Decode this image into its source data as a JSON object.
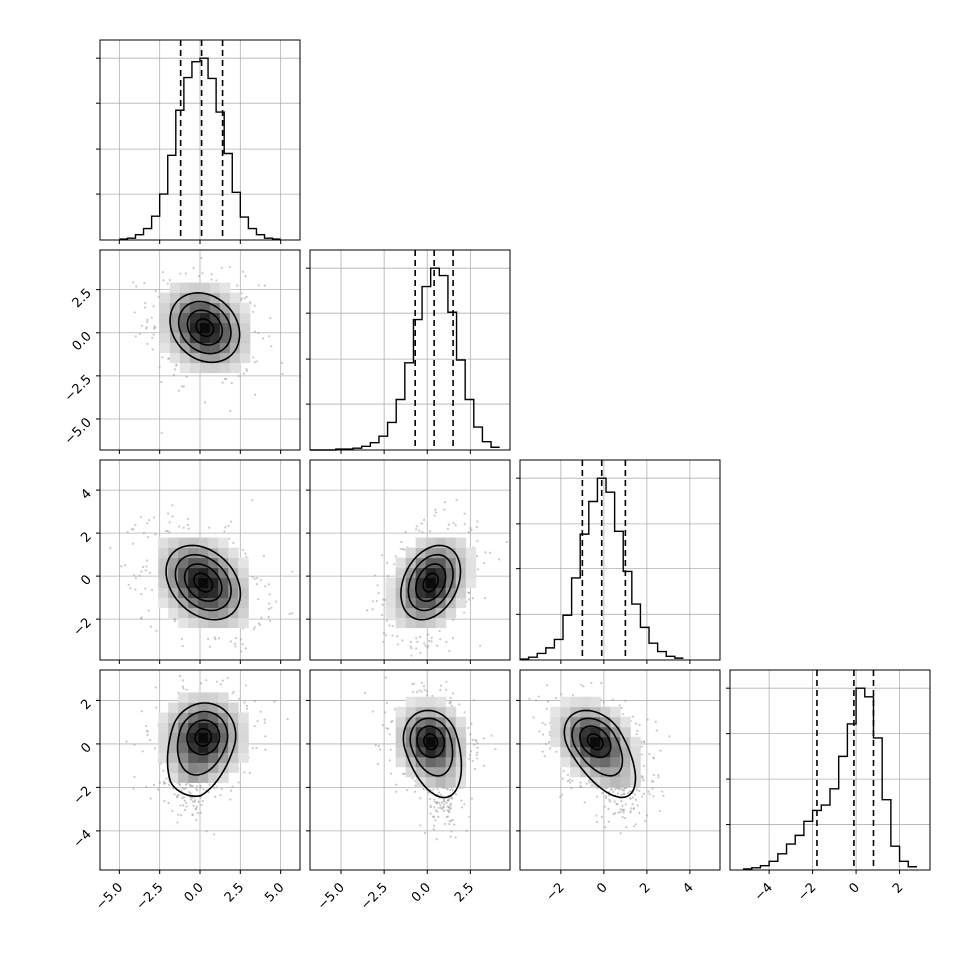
{
  "chart_data": {
    "type": "corner",
    "title": "",
    "grid": true,
    "parameters": [
      {
        "index": 0,
        "range": [
          -6.2,
          6.2
        ],
        "ticks": [
          -5.0,
          -2.5,
          0.0,
          2.5,
          5.0
        ],
        "tick_labels": [
          "−5.0",
          "−2.5",
          "0.0",
          "2.5",
          "5.0"
        ],
        "quantiles": [
          -1.2,
          0.1,
          1.4
        ],
        "histogram": {
          "bin_edges": [
            -5.0,
            -4.5,
            -4.0,
            -3.5,
            -3.0,
            -2.5,
            -2.0,
            -1.5,
            -1.0,
            -0.5,
            0.0,
            0.5,
            1.0,
            1.5,
            2.0,
            2.5,
            3.0,
            3.5,
            4.0,
            4.5,
            5.0
          ],
          "counts": [
            1,
            2,
            6,
            13,
            27,
            52,
            96,
            147,
            184,
            202,
            206,
            183,
            145,
            98,
            54,
            26,
            13,
            6,
            2,
            1
          ]
        }
      },
      {
        "index": 1,
        "range": [
          -6.8,
          4.8
        ],
        "ticks": [
          -5.0,
          -2.5,
          0.0,
          2.5
        ],
        "tick_labels": [
          "−5.0",
          "−2.5",
          "0.0",
          "2.5"
        ],
        "quantiles": [
          -0.7,
          0.4,
          1.5
        ],
        "histogram": {
          "bin_edges": [
            -6.8,
            -6.3,
            -5.8,
            -5.3,
            -4.8,
            -4.3,
            -3.8,
            -3.3,
            -2.8,
            -2.3,
            -1.8,
            -1.3,
            -0.8,
            -0.3,
            0.2,
            0.7,
            1.2,
            1.7,
            2.2,
            2.7,
            3.2,
            3.7,
            4.2
          ],
          "counts": [
            0,
            0,
            0,
            1,
            1,
            2,
            4,
            8,
            15,
            30,
            55,
            95,
            142,
            178,
            198,
            190,
            150,
            98,
            55,
            25,
            9,
            3
          ]
        }
      },
      {
        "index": 2,
        "range": [
          -3.9,
          5.4
        ],
        "ticks": [
          -2,
          0,
          2,
          4
        ],
        "tick_labels": [
          "−2",
          "0",
          "2",
          "4"
        ],
        "quantiles": [
          -1.0,
          -0.1,
          1.0
        ],
        "histogram": {
          "bin_edges": [
            -3.9,
            -3.5,
            -3.1,
            -2.7,
            -2.3,
            -1.9,
            -1.5,
            -1.1,
            -0.7,
            -0.3,
            0.1,
            0.5,
            0.9,
            1.3,
            1.7,
            2.1,
            2.5,
            2.9,
            3.3,
            3.7
          ],
          "counts": [
            1,
            3,
            7,
            13,
            22,
            48,
            88,
            135,
            170,
            195,
            180,
            138,
            95,
            60,
            35,
            18,
            9,
            4,
            2
          ]
        }
      },
      {
        "index": 3,
        "range": [
          -5.8,
          3.4
        ],
        "ticks": [
          -4,
          -2,
          0,
          2
        ],
        "tick_labels": [
          "−4",
          "−2",
          "0",
          "2"
        ],
        "quantiles": [
          -1.8,
          -0.1,
          0.8
        ],
        "histogram": {
          "bin_edges": [
            -5.2,
            -4.8,
            -4.4,
            -4.0,
            -3.6,
            -3.2,
            -2.8,
            -2.4,
            -2.0,
            -1.6,
            -1.2,
            -0.8,
            -0.4,
            0.0,
            0.4,
            0.8,
            1.2,
            1.6,
            2.0,
            2.4,
            2.8
          ],
          "counts": [
            1,
            2,
            4,
            8,
            15,
            24,
            32,
            45,
            55,
            60,
            75,
            105,
            135,
            168,
            160,
            122,
            65,
            22,
            8,
            3
          ]
        }
      }
    ],
    "panels_2d": [
      {
        "x": 0,
        "y": 1,
        "center": [
          0.3,
          0.3
        ],
        "sx": 1.5,
        "sy": 1.4,
        "rho": -0.2,
        "extra": null
      },
      {
        "x": 0,
        "y": 2,
        "center": [
          0.2,
          -0.3
        ],
        "sx": 1.6,
        "sy": 1.2,
        "rho": -0.3,
        "extra": null
      },
      {
        "x": 1,
        "y": 2,
        "center": [
          0.2,
          -0.3
        ],
        "sx": 1.2,
        "sy": 1.2,
        "rho": 0.3,
        "extra": null
      },
      {
        "x": 0,
        "y": 3,
        "center": [
          0.2,
          0.3
        ],
        "sx": 1.4,
        "sy": 1.1,
        "rho": 0.05,
        "extra": [
          -0.5,
          -1.9
        ]
      },
      {
        "x": 1,
        "y": 3,
        "center": [
          0.2,
          0.1
        ],
        "sx": 1.1,
        "sy": 1.0,
        "rho": -0.1,
        "extra": [
          1.0,
          -2.3
        ]
      },
      {
        "x": 2,
        "y": 3,
        "center": [
          -0.4,
          0.1
        ],
        "sx": 1.0,
        "sy": 1.0,
        "rho": -0.3,
        "extra": [
          0.8,
          -2.3
        ]
      }
    ]
  }
}
